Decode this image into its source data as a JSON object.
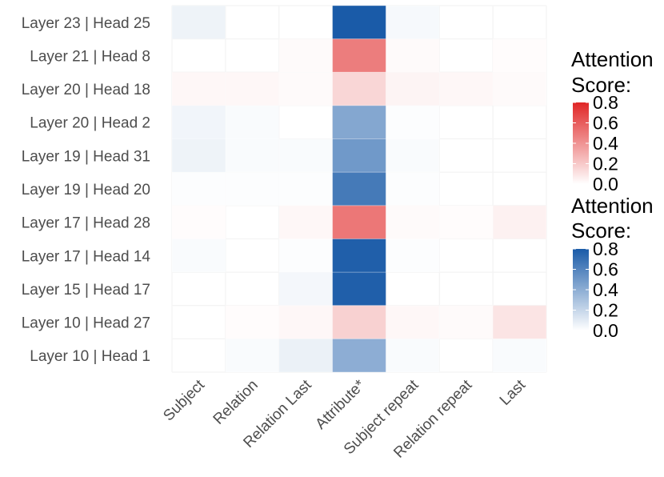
{
  "chart_data": {
    "type": "heatmap",
    "rows": [
      "Layer 23 | Head 25",
      "Layer 21 | Head 8",
      "Layer 20 | Head 18",
      "Layer 20 | Head 2",
      "Layer 19 | Head 31",
      "Layer 19 | Head 20",
      "Layer 17 | Head 28",
      "Layer 17 | Head 14",
      "Layer 15 | Head 17",
      "Layer 10 | Head 27",
      "Layer 10 | Head 1"
    ],
    "columns": [
      "Subject",
      "Relation",
      "Relation Last",
      "Attribute*",
      "Subject repeat",
      "Relation repeat",
      "Last"
    ],
    "cells": [
      [
        {
          "v": 0.06,
          "s": "blue"
        },
        {
          "v": 0.0,
          "s": "blue"
        },
        {
          "v": 0.0,
          "s": "blue"
        },
        {
          "v": 0.85,
          "s": "blue"
        },
        {
          "v": 0.03,
          "s": "blue"
        },
        {
          "v": 0.0,
          "s": "blue"
        },
        {
          "v": 0.0,
          "s": "blue"
        }
      ],
      [
        {
          "v": 0.0,
          "s": "red"
        },
        {
          "v": 0.0,
          "s": "red"
        },
        {
          "v": 0.02,
          "s": "red"
        },
        {
          "v": 0.48,
          "s": "red"
        },
        {
          "v": 0.02,
          "s": "red"
        },
        {
          "v": 0.0,
          "s": "red"
        },
        {
          "v": 0.01,
          "s": "red"
        }
      ],
      [
        {
          "v": 0.03,
          "s": "red"
        },
        {
          "v": 0.03,
          "s": "red"
        },
        {
          "v": 0.02,
          "s": "red"
        },
        {
          "v": 0.15,
          "s": "red"
        },
        {
          "v": 0.04,
          "s": "red"
        },
        {
          "v": 0.03,
          "s": "red"
        },
        {
          "v": 0.02,
          "s": "red"
        }
      ],
      [
        {
          "v": 0.05,
          "s": "blue"
        },
        {
          "v": 0.02,
          "s": "blue"
        },
        {
          "v": 0.0,
          "s": "blue"
        },
        {
          "v": 0.43,
          "s": "blue"
        },
        {
          "v": 0.01,
          "s": "blue"
        },
        {
          "v": 0.0,
          "s": "blue"
        },
        {
          "v": 0.0,
          "s": "blue"
        }
      ],
      [
        {
          "v": 0.06,
          "s": "blue"
        },
        {
          "v": 0.02,
          "s": "blue"
        },
        {
          "v": 0.02,
          "s": "blue"
        },
        {
          "v": 0.5,
          "s": "blue"
        },
        {
          "v": 0.02,
          "s": "blue"
        },
        {
          "v": 0.0,
          "s": "blue"
        },
        {
          "v": 0.0,
          "s": "blue"
        }
      ],
      [
        {
          "v": 0.01,
          "s": "blue"
        },
        {
          "v": 0.01,
          "s": "blue"
        },
        {
          "v": 0.01,
          "s": "blue"
        },
        {
          "v": 0.65,
          "s": "blue"
        },
        {
          "v": 0.01,
          "s": "blue"
        },
        {
          "v": 0.0,
          "s": "blue"
        },
        {
          "v": 0.0,
          "s": "blue"
        }
      ],
      [
        {
          "v": 0.01,
          "s": "red"
        },
        {
          "v": 0.0,
          "s": "red"
        },
        {
          "v": 0.03,
          "s": "red"
        },
        {
          "v": 0.5,
          "s": "red"
        },
        {
          "v": 0.02,
          "s": "red"
        },
        {
          "v": 0.01,
          "s": "red"
        },
        {
          "v": 0.05,
          "s": "red"
        }
      ],
      [
        {
          "v": 0.02,
          "s": "blue"
        },
        {
          "v": 0.0,
          "s": "blue"
        },
        {
          "v": 0.01,
          "s": "blue"
        },
        {
          "v": 0.78,
          "s": "blue"
        },
        {
          "v": 0.01,
          "s": "blue"
        },
        {
          "v": 0.0,
          "s": "blue"
        },
        {
          "v": 0.0,
          "s": "blue"
        }
      ],
      [
        {
          "v": 0.0,
          "s": "blue"
        },
        {
          "v": 0.0,
          "s": "blue"
        },
        {
          "v": 0.04,
          "s": "blue"
        },
        {
          "v": 0.78,
          "s": "blue"
        },
        {
          "v": 0.0,
          "s": "blue"
        },
        {
          "v": 0.0,
          "s": "blue"
        },
        {
          "v": 0.0,
          "s": "blue"
        }
      ],
      [
        {
          "v": 0.0,
          "s": "red"
        },
        {
          "v": 0.01,
          "s": "red"
        },
        {
          "v": 0.03,
          "s": "red"
        },
        {
          "v": 0.17,
          "s": "red"
        },
        {
          "v": 0.03,
          "s": "red"
        },
        {
          "v": 0.02,
          "s": "red"
        },
        {
          "v": 0.1,
          "s": "red"
        }
      ],
      [
        {
          "v": 0.0,
          "s": "blue"
        },
        {
          "v": 0.02,
          "s": "blue"
        },
        {
          "v": 0.07,
          "s": "blue"
        },
        {
          "v": 0.4,
          "s": "blue"
        },
        {
          "v": 0.02,
          "s": "blue"
        },
        {
          "v": 0.0,
          "s": "blue"
        },
        {
          "v": 0.02,
          "s": "blue"
        }
      ]
    ],
    "scale_range": [
      0,
      0.8
    ],
    "legends": [
      {
        "title_line1": "Attention",
        "title_line2": "Score:",
        "ticks": [
          0.8,
          0.6,
          0.4,
          0.2,
          0.0
        ],
        "tick_labels": [
          "0.8",
          "0.6",
          "0.4",
          "0.2",
          "0.0"
        ],
        "low_color": "#ffffff",
        "high_color": "#e02626"
      },
      {
        "title_line1": "Attention",
        "title_line2": "Score:",
        "ticks": [
          0.8,
          0.6,
          0.4,
          0.2,
          0.0
        ],
        "tick_labels": [
          "0.8",
          "0.6",
          "0.4",
          "0.2",
          "0.0"
        ],
        "low_color": "#ffffff",
        "high_color": "#1a5ba8"
      }
    ],
    "grid": true,
    "legend_position": "right"
  },
  "colors": {
    "red_high": "#e02626",
    "blue_high": "#1a5ba8",
    "low": "#ffffff",
    "grid": "#ebebeb",
    "label": "#4d4d4d"
  }
}
